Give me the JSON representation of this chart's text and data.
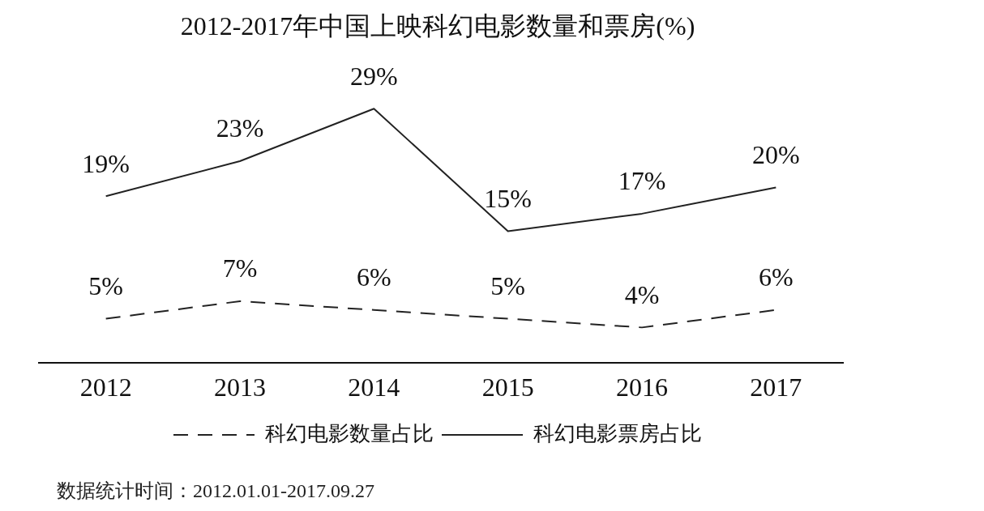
{
  "chart_data": {
    "type": "line",
    "title": "2012-2017年中国上映科幻电影数量和票房(%)",
    "categories": [
      "2012",
      "2013",
      "2014",
      "2015",
      "2016",
      "2017"
    ],
    "series": [
      {
        "name": "科幻电影数量占比",
        "color": "#222222",
        "line_style": "dashed",
        "values": [
          5,
          7,
          6,
          5,
          4,
          6
        ],
        "value_labels": [
          "5%",
          "7%",
          "6%",
          "5%",
          "4%",
          "6%"
        ]
      },
      {
        "name": "科幻电影票房占比",
        "color": "#222222",
        "line_style": "solid",
        "values": [
          19,
          23,
          29,
          15,
          17,
          20
        ],
        "value_labels": [
          "19%",
          "23%",
          "29%",
          "15%",
          "17%",
          "20%"
        ]
      }
    ],
    "tick_labels": "x",
    "grid": false,
    "legend": "bottom",
    "marker": "none",
    "annotations": [
      "数据统计时间：2012.01.01-2017.09.27"
    ]
  }
}
